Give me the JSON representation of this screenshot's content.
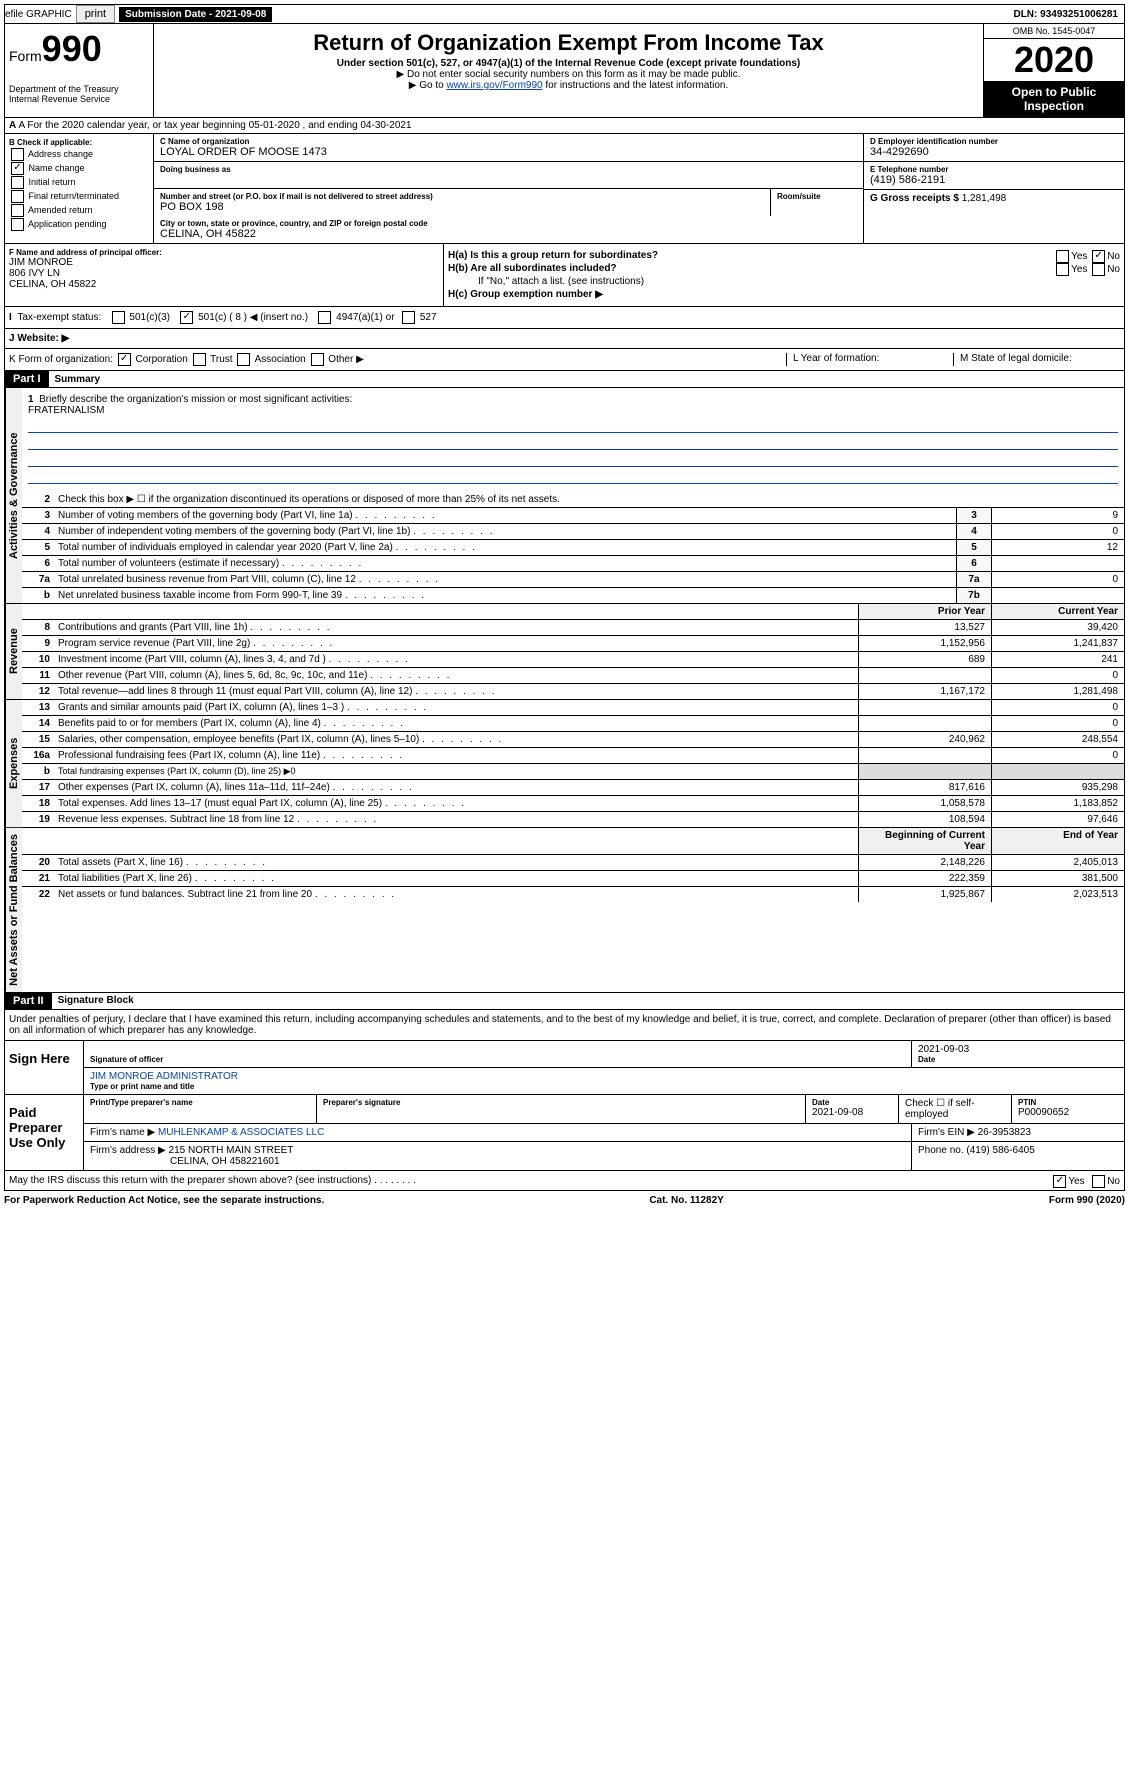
{
  "topbar": {
    "efile": "efile GRAPHIC",
    "print": "print",
    "subdate_lbl": "Submission Date - 2021-09-08",
    "dln": "DLN: 93493251006281"
  },
  "header": {
    "form_word": "Form",
    "form_num": "990",
    "dept": "Department of the Treasury\nInternal Revenue Service",
    "title": "Return of Organization Exempt From Income Tax",
    "sub": "Under section 501(c), 527, or 4947(a)(1) of the Internal Revenue Code (except private foundations)",
    "arrow1": "▶ Do not enter social security numbers on this form as it may be made public.",
    "arrow2_pre": "▶ Go to ",
    "arrow2_link": "www.irs.gov/Form990",
    "arrow2_post": " for instructions and the latest information.",
    "omb": "OMB No. 1545-0047",
    "year": "2020",
    "open": "Open to Public Inspection"
  },
  "rowA": "A For the 2020 calendar year, or tax year beginning 05-01-2020     , and ending 04-30-2021",
  "colB": {
    "lbl": "B Check if applicable:",
    "items": [
      "Address change",
      "Name change",
      "Initial return",
      "Final return/terminated",
      "Amended return",
      "Application pending"
    ],
    "checked": 1
  },
  "colC": {
    "name_lbl": "C Name of organization",
    "name": "LOYAL ORDER OF MOOSE 1473",
    "dba_lbl": "Doing business as",
    "street_lbl": "Number and street (or P.O. box if mail is not delivered to street address)",
    "room_lbl": "Room/suite",
    "street": "PO BOX 198",
    "city_lbl": "City or town, state or province, country, and ZIP or foreign postal code",
    "city": "CELINA, OH  45822"
  },
  "colD": {
    "ein_lbl": "D Employer identification number",
    "ein": "34-4292690",
    "phone_lbl": "E Telephone number",
    "phone": "(419) 586-2191",
    "gross_lbl": "G Gross receipts $",
    "gross": "1,281,498"
  },
  "secF": {
    "lbl": "F  Name and address of principal officer:",
    "name": "JIM MONROE",
    "addr1": "806 IVY LN",
    "addr2": "CELINA, OH  45822"
  },
  "secH": {
    "ha": "H(a)  Is this a group return for subordinates?",
    "hb": "H(b)  Are all subordinates included?",
    "hb_note": "If \"No,\" attach a list. (see instructions)",
    "hc": "H(c)  Group exemption number ▶",
    "yes": "Yes",
    "no": "No"
  },
  "taxexempt": {
    "lbl": "Tax-exempt status:",
    "c3": "501(c)(3)",
    "c": "501(c) ( 8 ) ◀ (insert no.)",
    "a1": "4947(a)(1) or",
    "s527": "527"
  },
  "rowJ": "J   Website: ▶",
  "rowK": {
    "lbl": "K Form of organization:",
    "corp": "Corporation",
    "trust": "Trust",
    "assoc": "Association",
    "other": "Other ▶",
    "L": "L Year of formation:",
    "M": "M State of legal domicile:"
  },
  "part1": {
    "hdr": "Part I",
    "title": "Summary",
    "q1": "Briefly describe the organization's mission or most significant activities:",
    "mission": "FRATERNALISM",
    "q2": "Check this box ▶ ☐  if the organization discontinued its operations or disposed of more than 25% of its net assets.",
    "lines_gov": [
      {
        "n": "3",
        "d": "Number of voting members of the governing body (Part VI, line 1a)",
        "box": "3",
        "v": "9"
      },
      {
        "n": "4",
        "d": "Number of independent voting members of the governing body (Part VI, line 1b)",
        "box": "4",
        "v": "0"
      },
      {
        "n": "5",
        "d": "Total number of individuals employed in calendar year 2020 (Part V, line 2a)",
        "box": "5",
        "v": "12"
      },
      {
        "n": "6",
        "d": "Total number of volunteers (estimate if necessary)",
        "box": "6",
        "v": ""
      },
      {
        "n": "7a",
        "d": "Total unrelated business revenue from Part VIII, column (C), line 12",
        "box": "7a",
        "v": "0"
      },
      {
        "n": "b",
        "d": "Net unrelated business taxable income from Form 990-T, line 39",
        "box": "7b",
        "v": ""
      }
    ],
    "col_prior": "Prior Year",
    "col_curr": "Current Year",
    "lines_rev": [
      {
        "n": "8",
        "d": "Contributions and grants (Part VIII, line 1h)",
        "p": "13,527",
        "c": "39,420"
      },
      {
        "n": "9",
        "d": "Program service revenue (Part VIII, line 2g)",
        "p": "1,152,956",
        "c": "1,241,837"
      },
      {
        "n": "10",
        "d": "Investment income (Part VIII, column (A), lines 3, 4, and 7d )",
        "p": "689",
        "c": "241"
      },
      {
        "n": "11",
        "d": "Other revenue (Part VIII, column (A), lines 5, 6d, 8c, 9c, 10c, and 11e)",
        "p": "",
        "c": "0"
      },
      {
        "n": "12",
        "d": "Total revenue—add lines 8 through 11 (must equal Part VIII, column (A), line 12)",
        "p": "1,167,172",
        "c": "1,281,498"
      }
    ],
    "lines_exp": [
      {
        "n": "13",
        "d": "Grants and similar amounts paid (Part IX, column (A), lines 1–3 )",
        "p": "",
        "c": "0"
      },
      {
        "n": "14",
        "d": "Benefits paid to or for members (Part IX, column (A), line 4)",
        "p": "",
        "c": "0"
      },
      {
        "n": "15",
        "d": "Salaries, other compensation, employee benefits (Part IX, column (A), lines 5–10)",
        "p": "240,962",
        "c": "248,554"
      },
      {
        "n": "16a",
        "d": "Professional fundraising fees (Part IX, column (A), line 11e)",
        "p": "",
        "c": "0"
      },
      {
        "n": "b",
        "d": "Total fundraising expenses (Part IX, column (D), line 25) ▶0",
        "p": null,
        "c": null
      },
      {
        "n": "17",
        "d": "Other expenses (Part IX, column (A), lines 11a–11d, 11f–24e)",
        "p": "817,616",
        "c": "935,298"
      },
      {
        "n": "18",
        "d": "Total expenses. Add lines 13–17 (must equal Part IX, column (A), line 25)",
        "p": "1,058,578",
        "c": "1,183,852"
      },
      {
        "n": "19",
        "d": "Revenue less expenses. Subtract line 18 from line 12",
        "p": "108,594",
        "c": "97,646"
      }
    ],
    "col_beg": "Beginning of Current Year",
    "col_end": "End of Year",
    "lines_net": [
      {
        "n": "20",
        "d": "Total assets (Part X, line 16)",
        "p": "2,148,226",
        "c": "2,405,013"
      },
      {
        "n": "21",
        "d": "Total liabilities (Part X, line 26)",
        "p": "222,359",
        "c": "381,500"
      },
      {
        "n": "22",
        "d": "Net assets or fund balances. Subtract line 21 from line 20",
        "p": "1,925,867",
        "c": "2,023,513"
      }
    ],
    "vtab_gov": "Activities & Governance",
    "vtab_rev": "Revenue",
    "vtab_exp": "Expenses",
    "vtab_net": "Net Assets or Fund Balances"
  },
  "part2": {
    "hdr": "Part II",
    "title": "Signature Block",
    "perjury": "Under penalties of perjury, I declare that I have examined this return, including accompanying schedules and statements, and to the best of my knowledge and belief, it is true, correct, and complete. Declaration of preparer (other than officer) is based on all information of which preparer has any knowledge.",
    "sign_here": "Sign Here",
    "sig_officer": "Signature of officer",
    "sig_date": "2021-09-03",
    "date_lbl": "Date",
    "officer_name": "JIM MONROE ADMINISTRATOR",
    "type_name": "Type or print name and title",
    "paid_prep": "Paid Preparer Use Only",
    "prep_name_lbl": "Print/Type preparer's name",
    "prep_sig_lbl": "Preparer's signature",
    "prep_date": "2021-09-08",
    "check_self": "Check ☐ if self-employed",
    "ptin_lbl": "PTIN",
    "ptin": "P00090652",
    "firm_name_lbl": "Firm's name    ▶",
    "firm_name": "MUHLENKAMP & ASSOCIATES LLC",
    "firm_ein_lbl": "Firm's EIN ▶",
    "firm_ein": "26-3953823",
    "firm_addr_lbl": "Firm's address ▶",
    "firm_addr": "215 NORTH MAIN STREET",
    "firm_city": "CELINA, OH  458221601",
    "firm_phone_lbl": "Phone no.",
    "firm_phone": "(419) 586-6405",
    "discuss": "May the IRS discuss this return with the preparer shown above? (see instructions)",
    "yes": "Yes",
    "no": "No"
  },
  "footer": {
    "left": "For Paperwork Reduction Act Notice, see the separate instructions.",
    "mid": "Cat. No. 11282Y",
    "right": "Form 990 (2020)"
  }
}
